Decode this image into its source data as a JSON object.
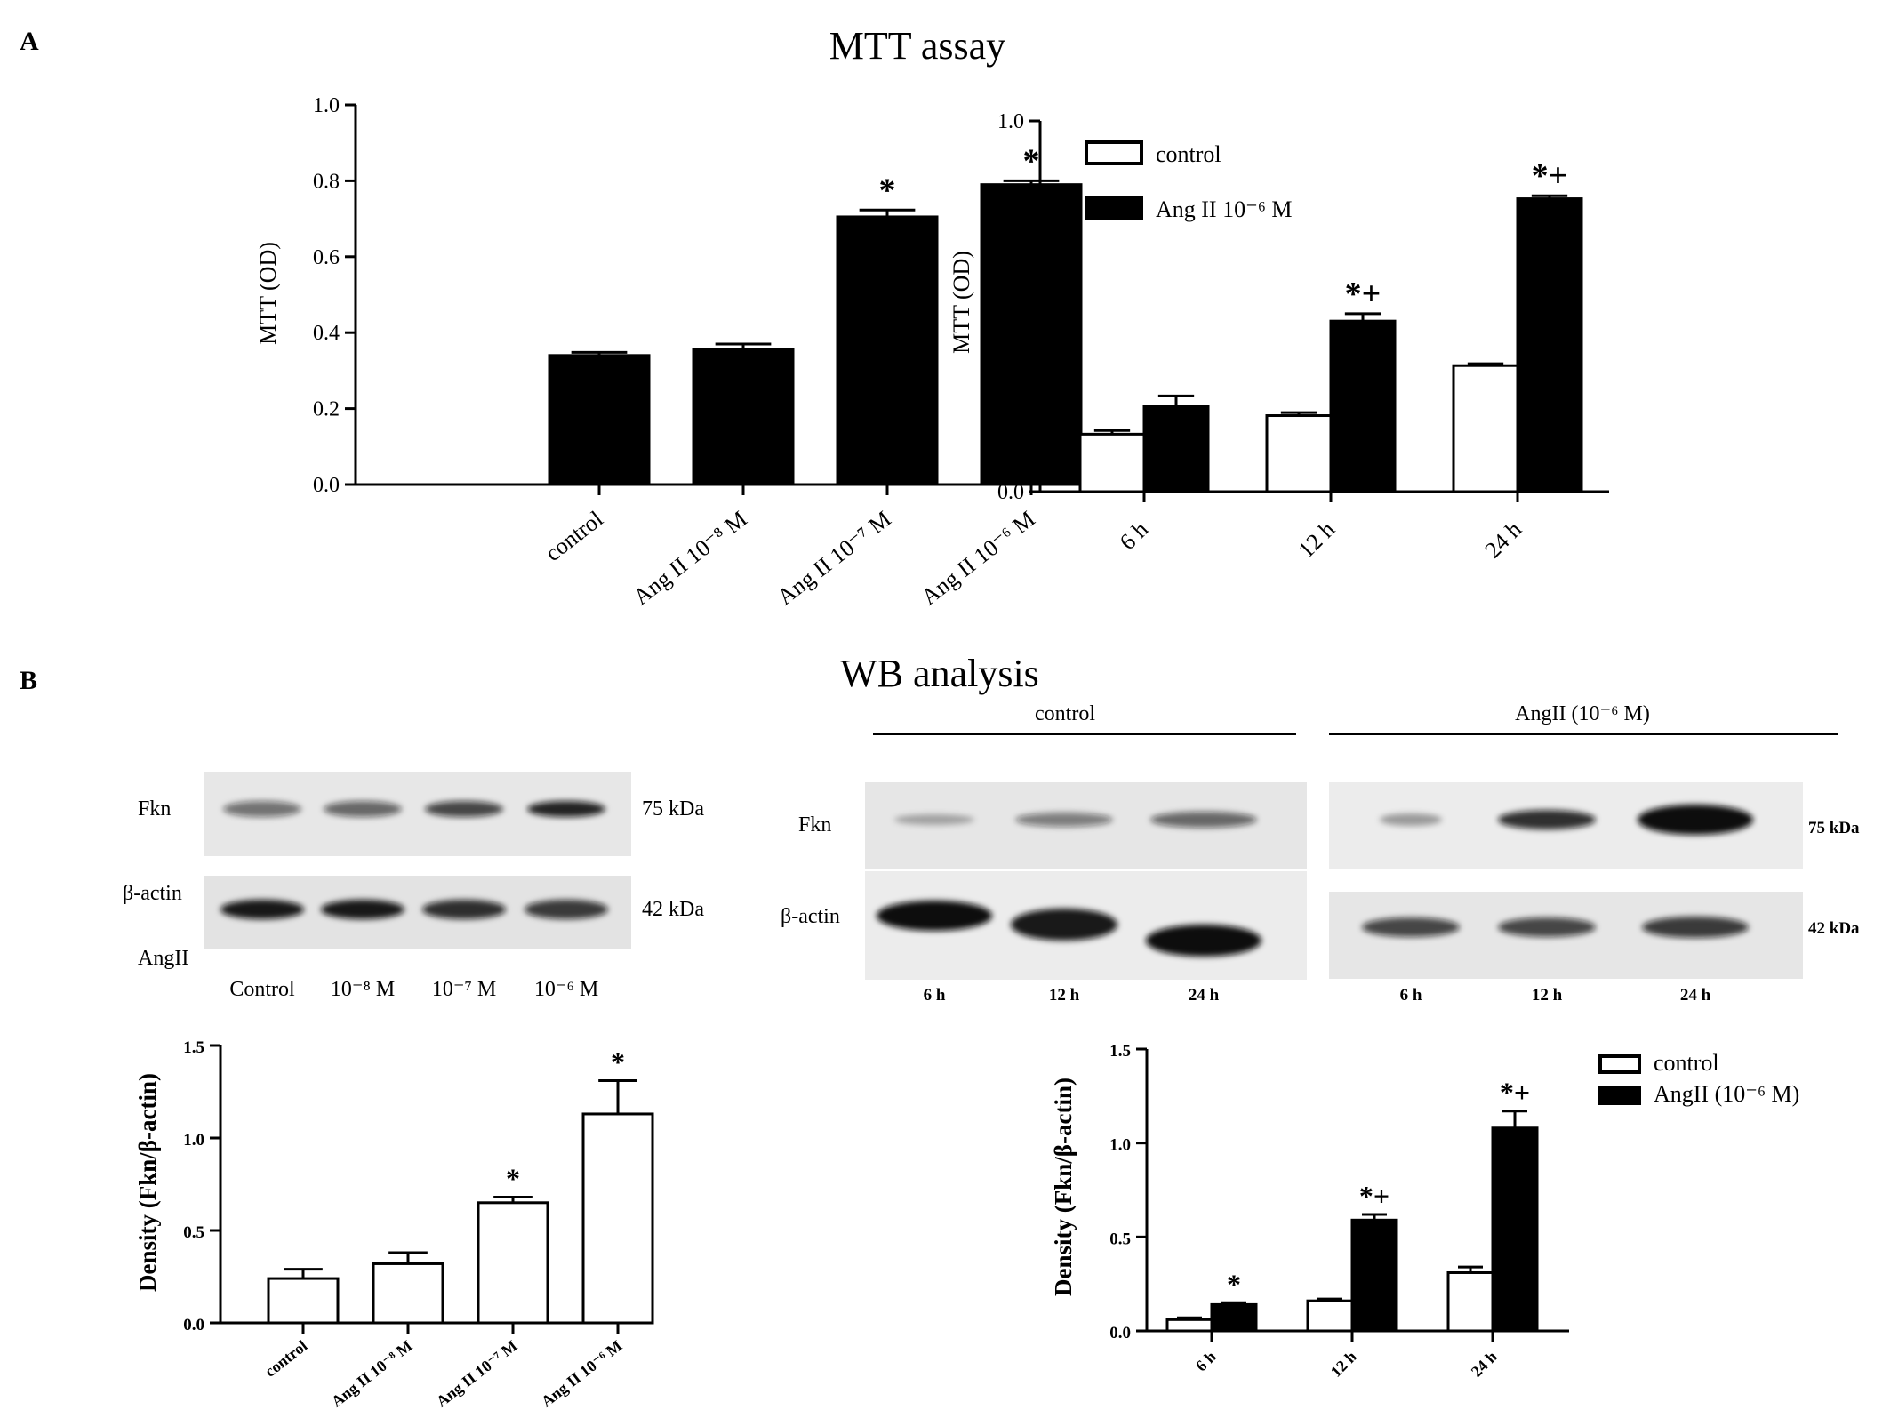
{
  "panel_labels": {
    "a": "A",
    "b": "B"
  },
  "titles": {
    "mtt": "MTT assay",
    "wb": "WB analysis"
  },
  "chart_data": [
    {
      "id": "mtt_dose",
      "type": "bar",
      "title": "",
      "ylabel": "MTT (OD)",
      "ylim": [
        0,
        1.0
      ],
      "yticks": [
        "0.0",
        "0.2",
        "0.4",
        "0.6",
        "0.8",
        "1.0"
      ],
      "categories": [
        "control",
        "Ang II 10⁻⁸ M",
        "Ang II 10⁻⁷ M",
        "Ang II 10⁻⁶ M"
      ],
      "series": [
        {
          "values": [
            0.34,
            0.355,
            0.705,
            0.79
          ],
          "errors": [
            0.008,
            0.015,
            0.018,
            0.01
          ],
          "fill": "#000000"
        }
      ],
      "annotations": [
        "",
        "",
        "*",
        "*"
      ]
    },
    {
      "id": "mtt_time",
      "type": "bar",
      "title": "",
      "ylabel": "MTT (OD)",
      "ylim": [
        0,
        1.0
      ],
      "yticks": [
        "0.0",
        "0.2",
        "0.4",
        "0.6",
        "0.8",
        "1.0"
      ],
      "categories": [
        "6 h",
        "12 h",
        "24 h"
      ],
      "legend_position": "top-left",
      "series": [
        {
          "name": "control",
          "values": [
            0.155,
            0.205,
            0.34
          ],
          "errors": [
            0.01,
            0.008,
            0.005
          ],
          "fill": "#ffffff"
        },
        {
          "name": "Ang II 10⁻⁶ M",
          "values": [
            0.23,
            0.46,
            0.79
          ],
          "errors": [
            0.028,
            0.02,
            0.008
          ],
          "fill": "#000000"
        }
      ],
      "annotations": [
        "",
        "*+",
        "*+"
      ]
    },
    {
      "id": "wb_dose_density",
      "type": "bar",
      "title": "",
      "ylabel": "Density (Fkn/β-actin)",
      "ylim": [
        0,
        1.5
      ],
      "yticks": [
        "0.0",
        "0.5",
        "1.0",
        "1.5"
      ],
      "categories": [
        "control",
        "Ang II 10⁻⁸ M",
        "Ang II 10⁻⁷ M",
        "Ang II 10⁻⁶ M"
      ],
      "series": [
        {
          "values": [
            0.24,
            0.32,
            0.65,
            1.13
          ],
          "errors": [
            0.05,
            0.06,
            0.03,
            0.18
          ],
          "fill": "#ffffff"
        }
      ],
      "annotations": [
        "",
        "",
        "*",
        "*"
      ]
    },
    {
      "id": "wb_time_density",
      "type": "bar",
      "title": "",
      "ylabel": "Density (Fkn/β-actin)",
      "ylim": [
        0,
        1.5
      ],
      "yticks": [
        "0.0",
        "0.5",
        "1.0",
        "1.5"
      ],
      "categories": [
        "6 h",
        "12 h",
        "24 h"
      ],
      "legend_position": "top-right",
      "series": [
        {
          "name": "control",
          "values": [
            0.06,
            0.16,
            0.31
          ],
          "errors": [
            0.01,
            0.01,
            0.03
          ],
          "fill": "#ffffff"
        },
        {
          "name": "AngII (10⁻⁶ M)",
          "values": [
            0.14,
            0.59,
            1.08
          ],
          "errors": [
            0.01,
            0.03,
            0.09
          ],
          "fill": "#000000"
        }
      ],
      "annotations": [
        "*",
        "*+",
        "*+"
      ]
    }
  ],
  "blot_left": {
    "protein_top": "Fkn",
    "protein_bottom": "β-actin",
    "kda_top": "75 kDa",
    "kda_bottom": "42 kDa",
    "treatment_label": "AngII",
    "lanes": [
      "Control",
      "10⁻⁸ M",
      "10⁻⁷ M",
      "10⁻⁶ M"
    ],
    "fkn_intensity": [
      0.55,
      0.6,
      0.75,
      0.9
    ],
    "actin_intensity": [
      0.95,
      0.95,
      0.85,
      0.8
    ]
  },
  "blot_right": {
    "group_control": "control",
    "group_treated": "AngII (10⁻⁶ M)",
    "protein_top": "Fkn",
    "protein_bottom": "β-actin",
    "kda_top": "75 kDa",
    "kda_bottom": "42 kDa",
    "lanes": [
      "6 h",
      "12 h",
      "24 h",
      "6 h",
      "12 h",
      "24 h"
    ],
    "fkn_intensity": [
      0.3,
      0.5,
      0.6,
      0.35,
      0.85,
      1.0
    ],
    "actin_intensity": [
      1.0,
      0.95,
      1.0,
      0.75,
      0.75,
      0.8
    ]
  }
}
